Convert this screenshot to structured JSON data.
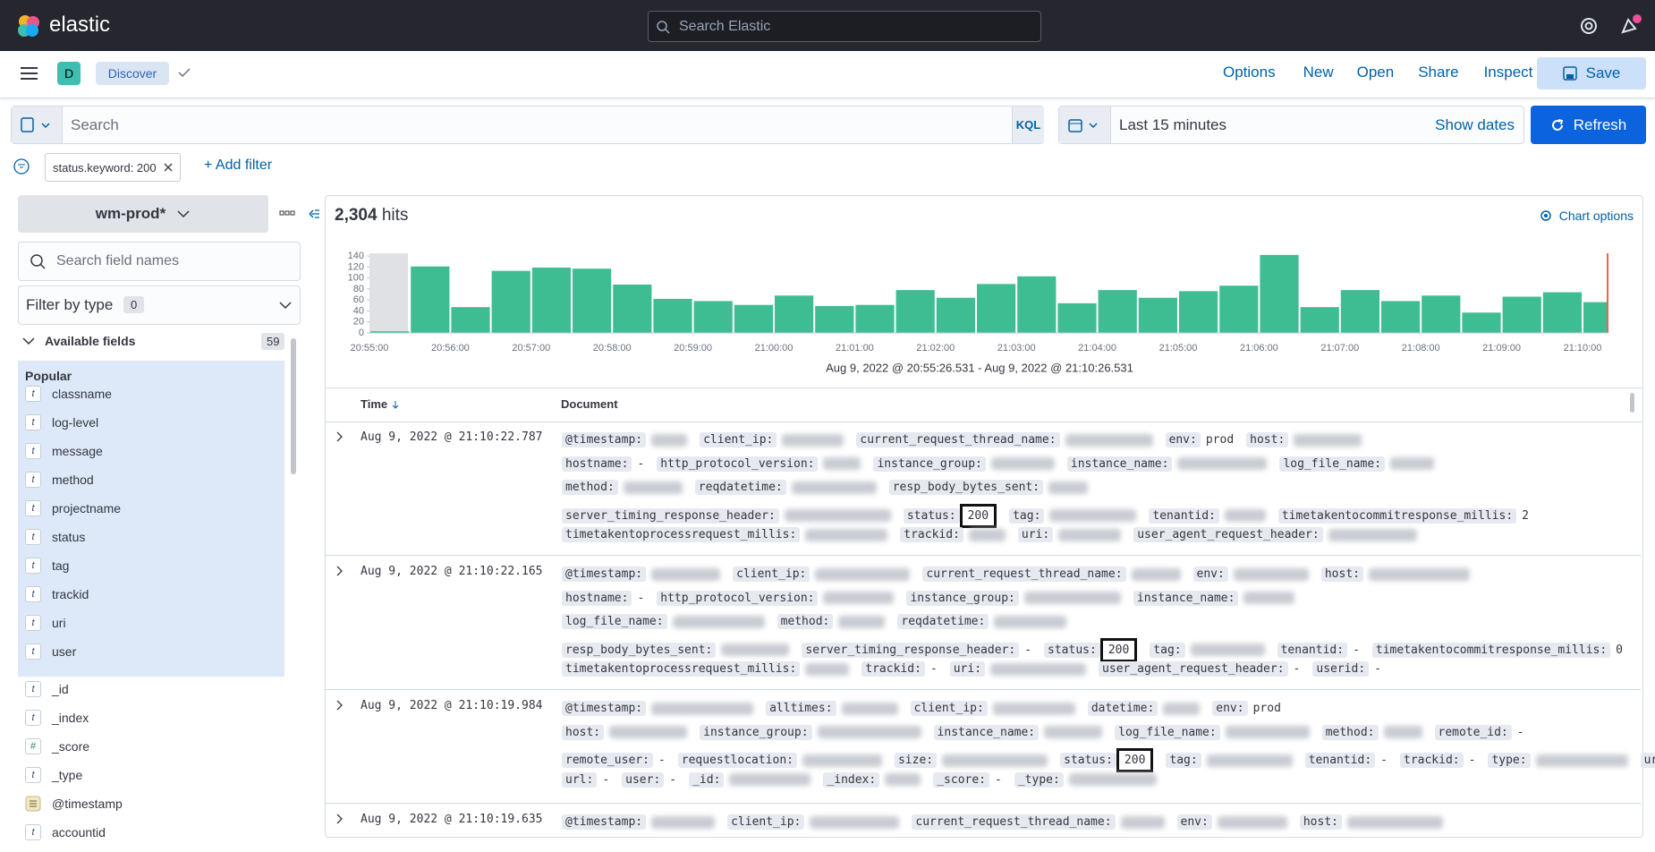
{
  "header": {
    "brand": "elastic",
    "search_placeholder": "Search Elastic"
  },
  "nav": {
    "space": "D",
    "app": "Discover",
    "menu": [
      "Options",
      "New",
      "Open",
      "Share",
      "Inspect"
    ],
    "save": "Save"
  },
  "query": {
    "placeholder": "Search",
    "language": "KQL",
    "time_range": "Last 15 minutes",
    "show_dates": "Show dates",
    "refresh": "Refresh"
  },
  "filters": {
    "items": [
      "status.keyword: 200"
    ],
    "add": "+ Add filter"
  },
  "sidebar": {
    "index_pattern": "wm-prod*",
    "search_placeholder": "Search field names",
    "filter_label": "Filter by type",
    "filter_count": 0,
    "available_label": "Available fields",
    "available_count": 59,
    "popular_label": "Popular",
    "popular": [
      {
        "type": "t",
        "name": "classname"
      },
      {
        "type": "t",
        "name": "log-level"
      },
      {
        "type": "t",
        "name": "message"
      },
      {
        "type": "t",
        "name": "method"
      },
      {
        "type": "t",
        "name": "projectname"
      },
      {
        "type": "t",
        "name": "status"
      },
      {
        "type": "t",
        "name": "tag"
      },
      {
        "type": "t",
        "name": "trackid"
      },
      {
        "type": "t",
        "name": "uri"
      },
      {
        "type": "t",
        "name": "user"
      }
    ],
    "fields": [
      {
        "type": "t",
        "name": "_id"
      },
      {
        "type": "t",
        "name": "_index"
      },
      {
        "type": "#",
        "name": "_score"
      },
      {
        "type": "t",
        "name": "_type"
      },
      {
        "type": "date",
        "name": "@timestamp"
      },
      {
        "type": "t",
        "name": "accountid"
      }
    ]
  },
  "results": {
    "hits": "2,304",
    "hits_label": "hits",
    "chart_options": "Chart options"
  },
  "chart_data": {
    "type": "bar",
    "xlabel": "Aug 9, 2022 @ 20:55:26.531 - Aug 9, 2022 @ 21:10:26.531",
    "categories": [
      "20:55:00",
      null,
      "20:56:00",
      null,
      "20:57:00",
      null,
      "20:58:00",
      null,
      "20:59:00",
      null,
      "21:00:00",
      null,
      "21:01:00",
      null,
      "21:02:00",
      null,
      "21:03:00",
      null,
      "21:04:00",
      null,
      "21:05:00",
      null,
      "21:06:00",
      null,
      "21:07:00",
      null,
      "21:08:00",
      null,
      "21:09:00",
      null,
      "21:10:00"
    ],
    "values": [
      3,
      121,
      47,
      113,
      119,
      117,
      88,
      62,
      58,
      51,
      68,
      49,
      51,
      78,
      64,
      89,
      103,
      54,
      78,
      64,
      76,
      86,
      142,
      47,
      78,
      58,
      68,
      37,
      66,
      74,
      56
    ],
    "color": "#3ebd93",
    "ylim": [
      0,
      145
    ],
    "yticks": [
      0,
      20,
      40,
      60,
      80,
      100,
      120,
      140
    ]
  },
  "table": {
    "columns": [
      "Time",
      "Document"
    ],
    "rows": [
      {
        "time": "Aug 9, 2022 @ 21:10:22.787",
        "lines": [
          [
            {
              "key": "@timestamp:"
            },
            {
              "key": "client_ip:"
            },
            {
              "key": "current_request_thread_name:"
            },
            {
              "key": "env:",
              "value": "prod"
            },
            {
              "key": "host:"
            }
          ],
          [
            {
              "key": "hostname:",
              "value": "-"
            },
            {
              "key": "http_protocol_version:"
            },
            {
              "key": "instance_group:"
            },
            {
              "key": "instance_name:"
            },
            {
              "key": "log_file_name:"
            }
          ],
          [
            {
              "key": "method:"
            },
            {
              "key": "reqdatetime:"
            },
            {
              "key": "resp_body_bytes_sent:"
            }
          ],
          [
            {
              "key": "server_timing_response_header:"
            },
            {
              "key": "status:",
              "value": "200",
              "boxed": true
            },
            {
              "key": "tag:"
            },
            {
              "key": "tenantid:"
            },
            {
              "key": "timetakentocommitresponse_millis:",
              "value": "2"
            }
          ],
          [
            {
              "key": "timetakentoprocessrequest_millis:"
            },
            {
              "key": "trackid:"
            },
            {
              "key": "uri:"
            },
            {
              "key": "user_agent_request_header:"
            }
          ]
        ]
      },
      {
        "time": "Aug 9, 2022 @ 21:10:22.165",
        "lines": [
          [
            {
              "key": "@timestamp:"
            },
            {
              "key": "client_ip:"
            },
            {
              "key": "current_request_thread_name:"
            },
            {
              "key": "env:"
            },
            {
              "key": "host:"
            }
          ],
          [
            {
              "key": "hostname:",
              "value": "-"
            },
            {
              "key": "http_protocol_version:"
            },
            {
              "key": "instance_group:"
            },
            {
              "key": "instance_name:"
            }
          ],
          [
            {
              "key": "log_file_name:"
            },
            {
              "key": "method:"
            },
            {
              "key": "reqdatetime:"
            }
          ],
          [
            {
              "key": "resp_body_bytes_sent:"
            },
            {
              "key": "server_timing_response_header:",
              "value": "-"
            },
            {
              "key": "status:",
              "value": "200",
              "boxed": true
            },
            {
              "key": "tag:"
            },
            {
              "key": "tenantid:",
              "value": "-"
            },
            {
              "key": "timetakentocommitresponse_millis:",
              "value": "0"
            }
          ],
          [
            {
              "key": "timetakentoprocessrequest_millis:"
            },
            {
              "key": "trackid:",
              "value": "-"
            },
            {
              "key": "uri:"
            },
            {
              "key": "user_agent_request_header:",
              "value": "-"
            },
            {
              "key": "userid:",
              "value": "-"
            }
          ]
        ]
      },
      {
        "time": "Aug 9, 2022 @ 21:10:19.984",
        "lines": [
          [
            {
              "key": "@timestamp:"
            },
            {
              "key": "alltimes:"
            },
            {
              "key": "client_ip:"
            },
            {
              "key": "datetime:"
            },
            {
              "key": "env:",
              "value": "prod"
            }
          ],
          [
            {
              "key": "host:"
            },
            {
              "key": "instance_group:"
            },
            {
              "key": "instance_name:"
            },
            {
              "key": "log_file_name:"
            },
            {
              "key": "method:"
            },
            {
              "key": "remote_id:",
              "value": "-"
            }
          ],
          [
            {
              "key": "remote_user:",
              "value": "-"
            },
            {
              "key": "requestlocation:"
            },
            {
              "key": "size:"
            },
            {
              "key": "status:",
              "value": "200",
              "boxed": true
            },
            {
              "key": "tag:"
            },
            {
              "key": "tenantid:",
              "value": "-"
            },
            {
              "key": "trackid:",
              "value": "-"
            },
            {
              "key": "type:"
            },
            {
              "key": "uri:"
            }
          ],
          [
            {
              "key": "url:",
              "value": "-"
            },
            {
              "key": "user:",
              "value": "-"
            },
            {
              "key": "_id:"
            },
            {
              "key": "_index:"
            },
            {
              "key": "_score:",
              "value": "-"
            },
            {
              "key": "_type:"
            }
          ]
        ]
      },
      {
        "time": "Aug 9, 2022 @ 21:10:19.635",
        "lines": [
          [
            {
              "key": "@timestamp:"
            },
            {
              "key": "client_ip:"
            },
            {
              "key": "current_request_thread_name:"
            },
            {
              "key": "env:"
            },
            {
              "key": "host:"
            }
          ]
        ]
      }
    ]
  }
}
